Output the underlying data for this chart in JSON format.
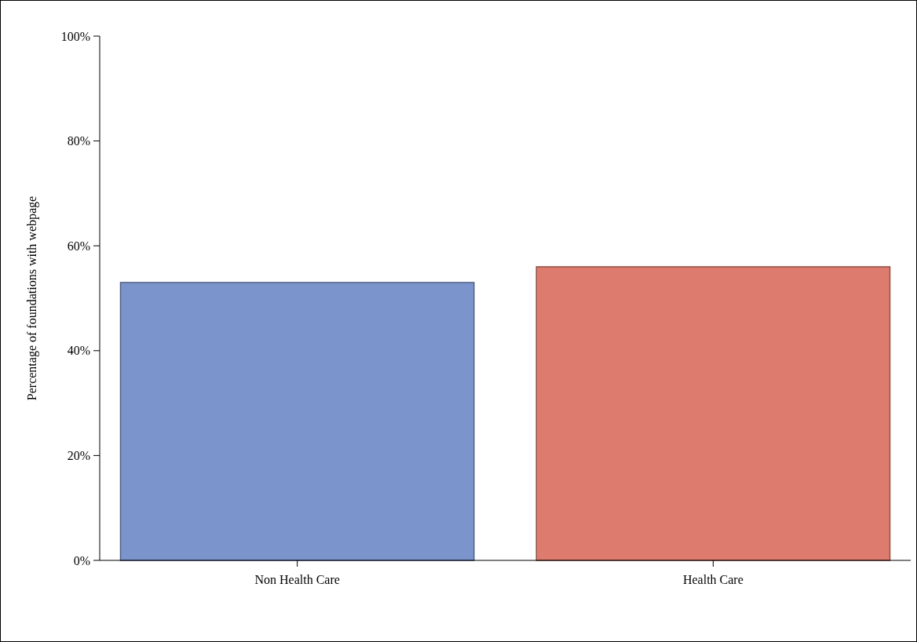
{
  "chart_data": {
    "type": "bar",
    "ylabel": "Percentage of foundations with webpage",
    "categories": [
      "Non Health Care",
      "Health Care"
    ],
    "values": [
      53,
      56
    ],
    "colors": [
      "#7b94cb",
      "#dd7c6e"
    ],
    "ylim": [
      0,
      100
    ],
    "yticks": [
      {
        "value": 0,
        "label": "0%"
      },
      {
        "value": 20,
        "label": "20%"
      },
      {
        "value": 40,
        "label": "40%"
      },
      {
        "value": 60,
        "label": "60%"
      },
      {
        "value": 80,
        "label": "80%"
      },
      {
        "value": 100,
        "label": "100%"
      }
    ],
    "grid": false
  }
}
